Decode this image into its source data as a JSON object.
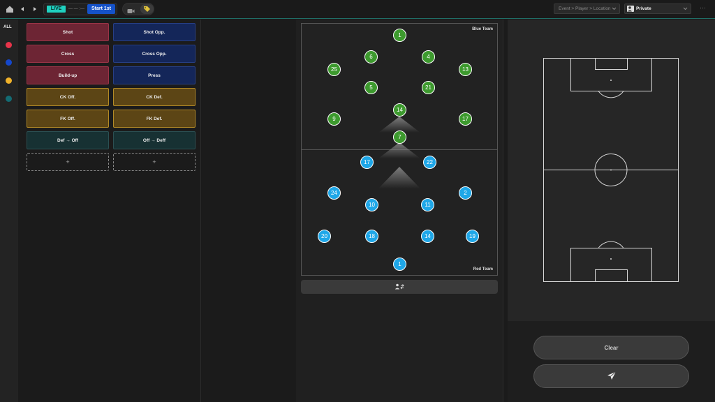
{
  "topbar": {
    "live_label": "LIVE",
    "timer_text": "— — :—",
    "start_label": "Start  1st",
    "event_select": "Event > Player > Location",
    "visibility_select": "Private",
    "more_label": "···"
  },
  "sidebar": {
    "all_label": "ALL",
    "dot_colors": [
      "#e8344a",
      "#1447cc",
      "#f0b22a",
      "#136b73"
    ]
  },
  "tags": {
    "shot": "Shot",
    "shot_opp": "Shot Opp.",
    "cross": "Cross",
    "cross_opp": "Cross Opp.",
    "buildup": "Build-up",
    "press": "Press",
    "ck_off": "CK Off.",
    "ck_def": "CK Def.",
    "fk_off": "FK Off.",
    "fk_def": "FK Def.",
    "def_off": "Def → Off",
    "off_def": "Off → Deff",
    "add": "+"
  },
  "lineup": {
    "blue_team_label": "Blue Team",
    "red_team_label": "Red Team",
    "green_players": [
      "1",
      "6",
      "4",
      "25",
      "13",
      "5",
      "21",
      "14",
      "9",
      "17",
      "7"
    ],
    "blue_players": [
      "17",
      "22",
      "24",
      "2",
      "10",
      "11",
      "20",
      "18",
      "14",
      "19",
      "1"
    ]
  },
  "actions": {
    "clear_label": "Clear"
  }
}
